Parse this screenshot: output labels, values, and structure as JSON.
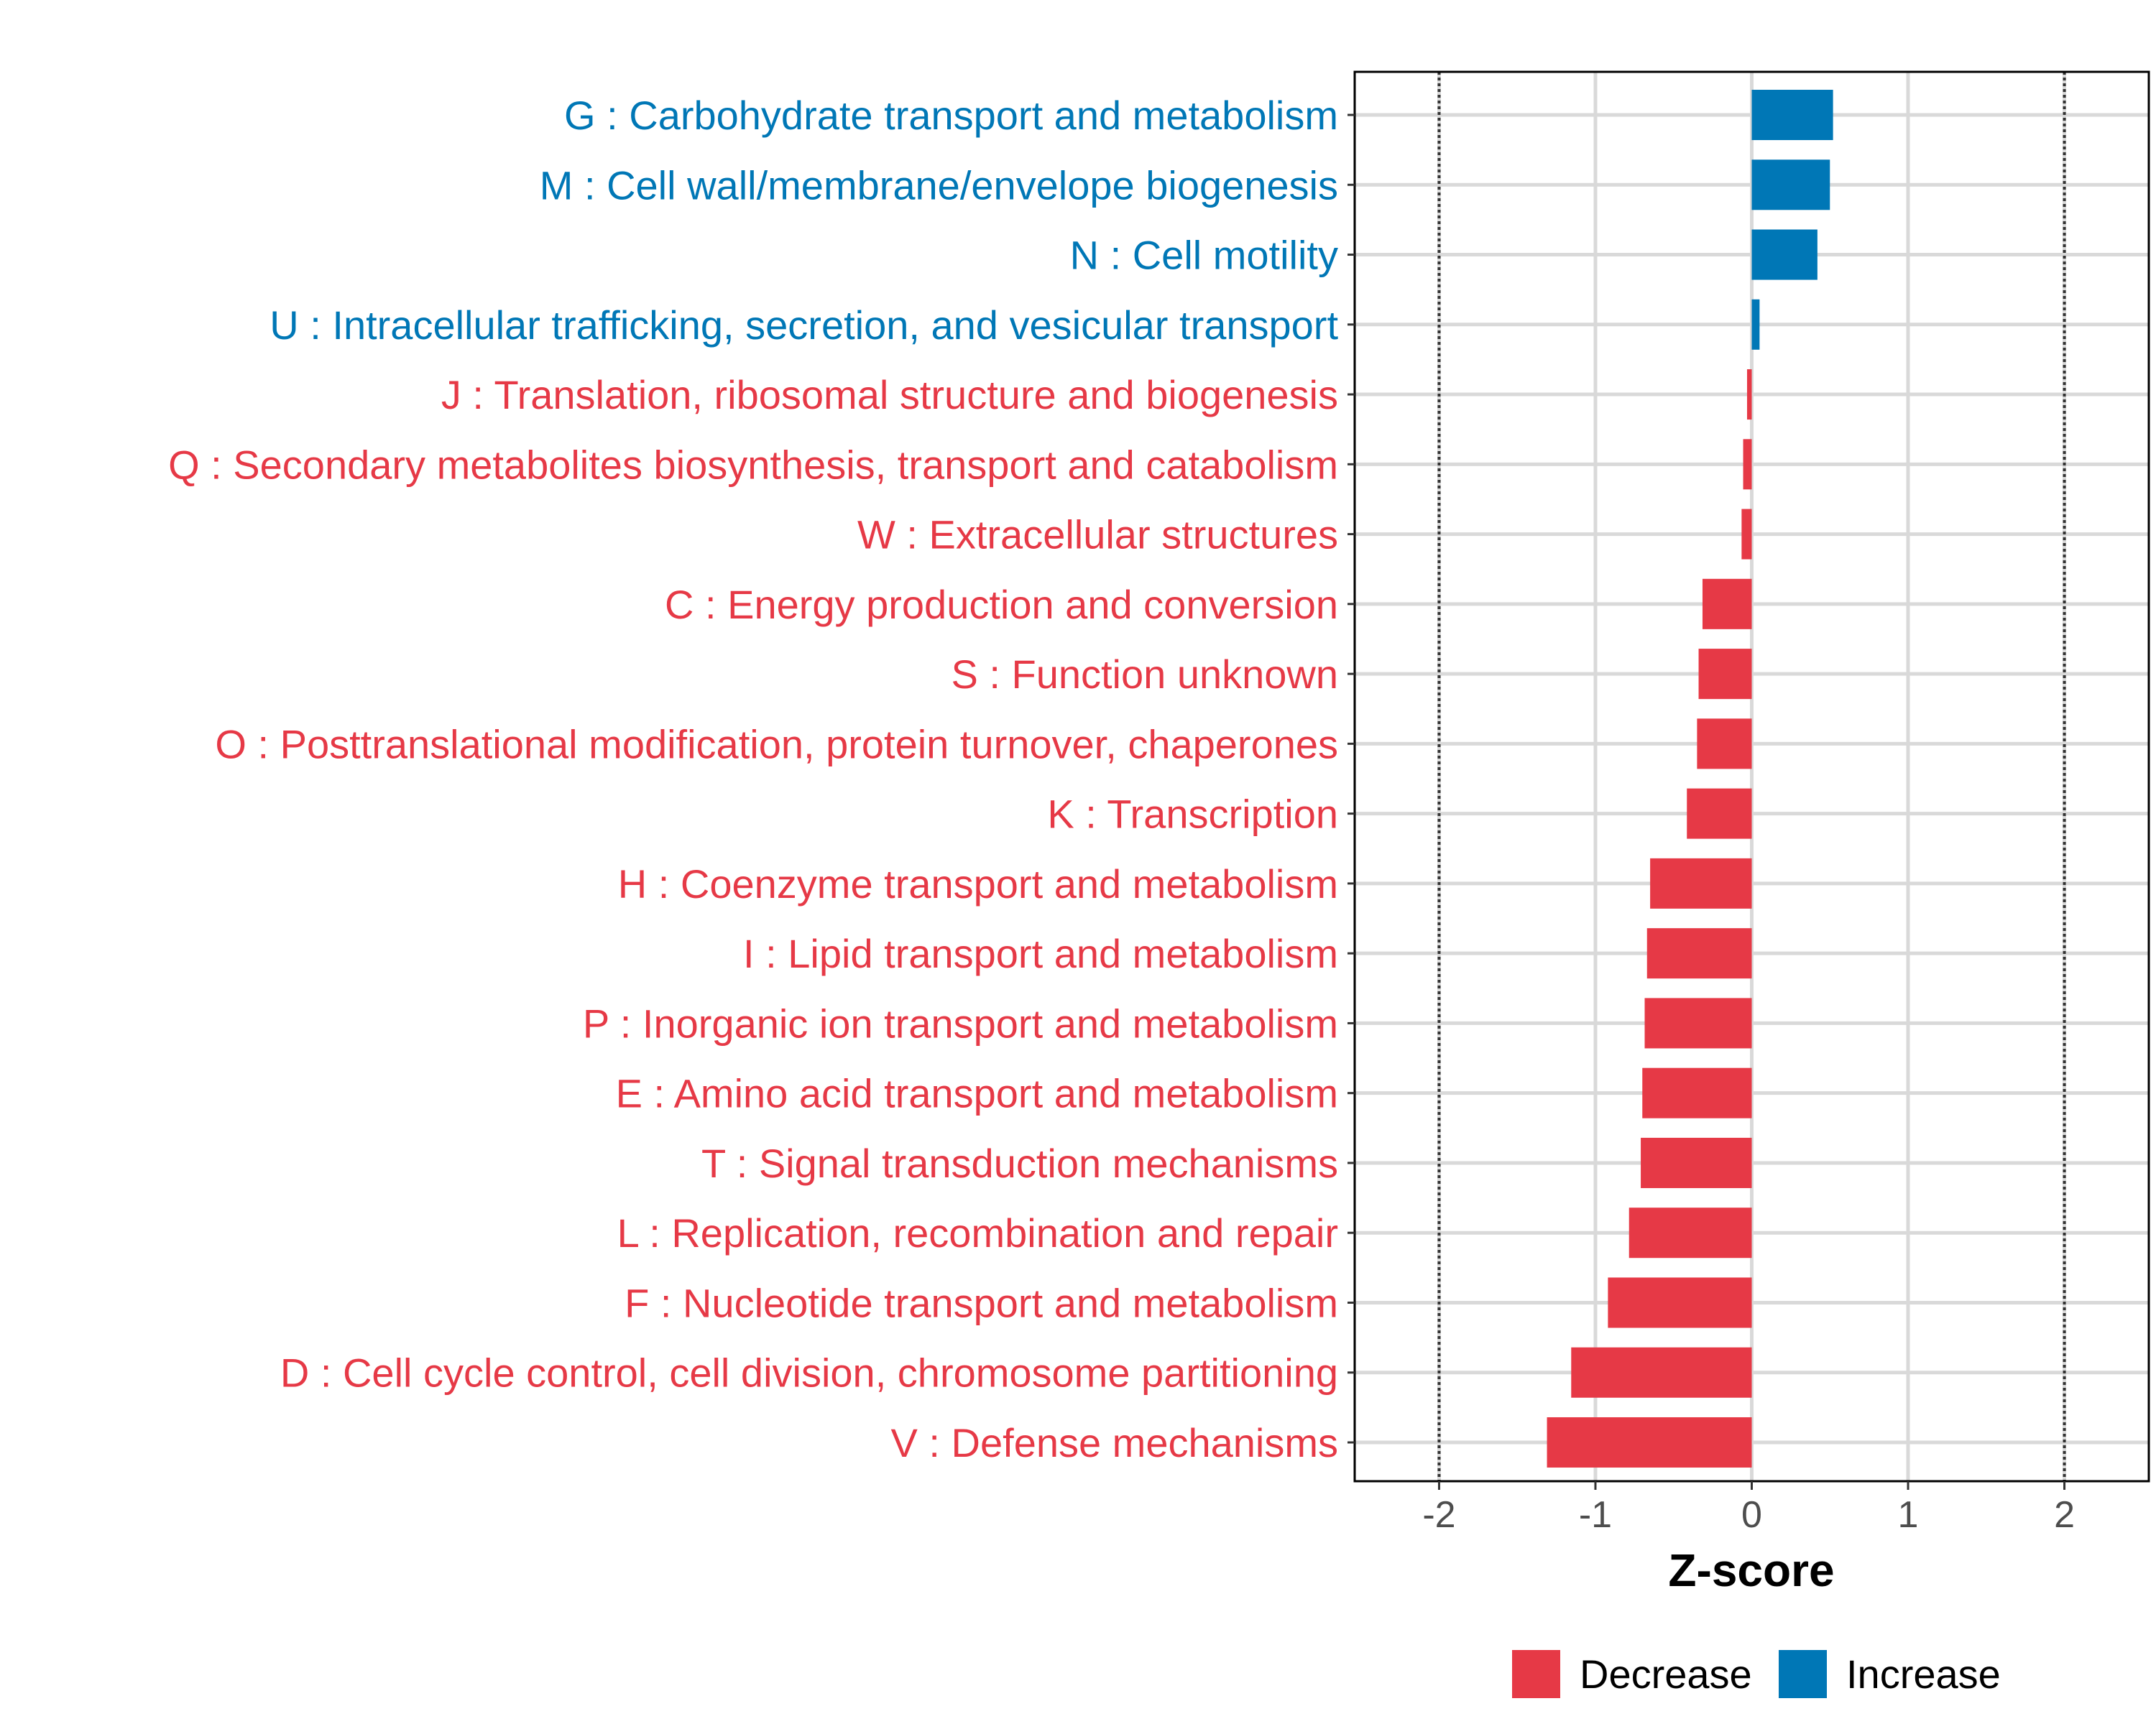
{
  "chart_data": {
    "type": "bar",
    "orientation": "horizontal",
    "title": "",
    "xlabel": "Z-score",
    "ylabel": "",
    "xlim": [
      -2.54,
      2.54
    ],
    "xticks": [
      -2,
      -1,
      0,
      1,
      2
    ],
    "xtick_labels": [
      "-2",
      "-1",
      "0",
      "1",
      "2"
    ],
    "reference_lines": [
      -2,
      2
    ],
    "grid": true,
    "legend_position": "bottom",
    "colors": {
      "Decrease": "#e63946",
      "Increase": "#0077b6"
    },
    "categories": [
      "G : Carbohydrate transport and metabolism",
      "M : Cell wall/membrane/envelope biogenesis",
      "N : Cell motility",
      "U : Intracellular trafficking, secretion, and vesicular transport",
      "J : Translation, ribosomal structure and biogenesis",
      "Q : Secondary metabolites biosynthesis, transport and catabolism",
      "W : Extracellular structures",
      "C : Energy production and conversion",
      "S : Function unknown",
      "O : Posttranslational modification, protein turnover, chaperones",
      "K : Transcription",
      "H : Coenzyme transport and metabolism",
      "I : Lipid transport and metabolism",
      "P : Inorganic ion transport and metabolism",
      "E : Amino acid transport and metabolism",
      "T : Signal transduction mechanisms",
      "L : Replication, recombination and repair",
      "F : Nucleotide transport and metabolism",
      "D : Cell cycle control, cell division, chromosome partitioning",
      "V : Defense mechanisms"
    ],
    "values": [
      0.52,
      0.5,
      0.42,
      0.05,
      -0.03,
      -0.055,
      -0.065,
      -0.315,
      -0.34,
      -0.35,
      -0.415,
      -0.65,
      -0.67,
      -0.685,
      -0.7,
      -0.71,
      -0.785,
      -0.92,
      -1.155,
      -1.31
    ],
    "groups": [
      "Increase",
      "Increase",
      "Increase",
      "Increase",
      "Decrease",
      "Decrease",
      "Decrease",
      "Decrease",
      "Decrease",
      "Decrease",
      "Decrease",
      "Decrease",
      "Decrease",
      "Decrease",
      "Decrease",
      "Decrease",
      "Decrease",
      "Decrease",
      "Decrease",
      "Decrease"
    ],
    "legend": [
      {
        "label": "Decrease",
        "color": "#e63946"
      },
      {
        "label": "Increase",
        "color": "#0077b6"
      }
    ]
  }
}
